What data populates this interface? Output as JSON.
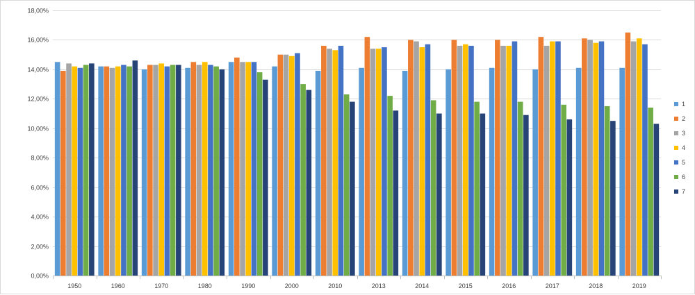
{
  "chart_data": {
    "type": "bar",
    "title": "",
    "xlabel": "",
    "ylabel": "",
    "ylim": [
      0,
      18
    ],
    "y_ticks": [
      0,
      2,
      4,
      6,
      8,
      10,
      12,
      14,
      16,
      18
    ],
    "y_tick_labels": [
      "0,00%",
      "2,00%",
      "4,00%",
      "6,00%",
      "8,00%",
      "10,00%",
      "12,00%",
      "14,00%",
      "16,00%",
      "18,00%"
    ],
    "y_unit": "%",
    "grid": true,
    "legend_position": "right",
    "categories": [
      "1950",
      "1960",
      "1970",
      "1980",
      "1990",
      "2000",
      "2010",
      "2013",
      "2014",
      "2015",
      "2016",
      "2017",
      "2018",
      "2019"
    ],
    "series": [
      {
        "name": "1",
        "color": "#5b9bd5",
        "values": [
          14.5,
          14.2,
          14.0,
          14.1,
          14.5,
          14.2,
          13.9,
          14.1,
          13.9,
          14.0,
          14.1,
          14.0,
          14.1,
          14.1
        ]
      },
      {
        "name": "2",
        "color": "#ed7d31",
        "values": [
          13.9,
          14.2,
          14.3,
          14.5,
          14.8,
          15.0,
          15.6,
          16.2,
          16.0,
          16.0,
          16.0,
          16.2,
          16.1,
          16.5
        ]
      },
      {
        "name": "3",
        "color": "#a5a5a5",
        "values": [
          14.4,
          14.1,
          14.3,
          14.3,
          14.5,
          15.0,
          15.4,
          15.4,
          15.9,
          15.6,
          15.6,
          15.6,
          16.0,
          15.9
        ]
      },
      {
        "name": "4",
        "color": "#ffc000",
        "values": [
          14.2,
          14.2,
          14.4,
          14.5,
          14.5,
          14.9,
          15.3,
          15.4,
          15.5,
          15.7,
          15.6,
          15.9,
          15.8,
          16.1
        ]
      },
      {
        "name": "5",
        "color": "#4472c4",
        "values": [
          14.1,
          14.3,
          14.2,
          14.3,
          14.5,
          15.1,
          15.6,
          15.5,
          15.7,
          15.6,
          15.9,
          15.9,
          15.9,
          15.7
        ]
      },
      {
        "name": "6",
        "color": "#70ad47",
        "values": [
          14.3,
          14.2,
          14.3,
          14.2,
          13.8,
          13.0,
          12.3,
          12.2,
          11.9,
          11.8,
          11.8,
          11.6,
          11.5,
          11.4
        ]
      },
      {
        "name": "7",
        "color": "#264478",
        "values": [
          14.4,
          14.6,
          14.3,
          14.0,
          13.3,
          12.6,
          11.8,
          11.2,
          11.0,
          11.0,
          10.9,
          10.6,
          10.5,
          10.3
        ]
      }
    ]
  }
}
